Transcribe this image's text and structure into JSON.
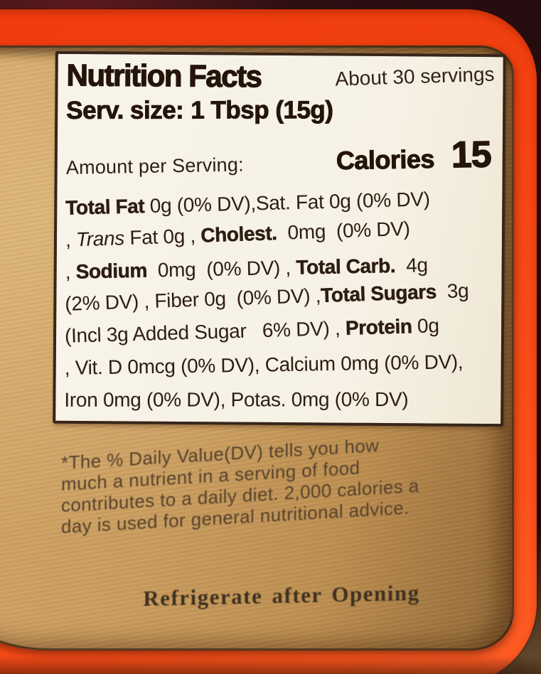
{
  "colors": {
    "bg-dark": "#2a0e11",
    "bg-dark-top": "#5a1a1d",
    "orange": "#ef3c10",
    "orange-bright": "#ff5d24",
    "label-tan": "#c99c5e",
    "label-tan-shadow": "#8f6636",
    "panel-white": "#f8f4ea",
    "ink-dark": "#241409",
    "ink-body": "#2e1d13",
    "ink-footnote": "#55412c",
    "ink-storage": "#3e3220"
  },
  "nutrition": {
    "title": "Nutrition Facts",
    "servings_note": "About 30 servings",
    "serving_size_label": "Serv. size:",
    "serving_size_value": "1 Tbsp (15g)",
    "amount_label": "Amount per Serving:",
    "calories_label": "Calories",
    "calories_value": "15",
    "lines": [
      {
        "segments": [
          {
            "t": "Total Fat",
            "s": "b"
          },
          {
            "t": " 0g (0% DV),",
            "s": "r"
          },
          {
            "t": "Sat. Fat 0g (0% DV)",
            "s": "r"
          }
        ]
      },
      {
        "segments": [
          {
            "t": ", ",
            "s": "r"
          },
          {
            "t": "Trans",
            "s": "i"
          },
          {
            "t": " Fat 0g , ",
            "s": "r"
          },
          {
            "t": "Cholest.",
            "s": "b"
          },
          {
            "t": "  0mg  (0% DV)",
            "s": "r"
          }
        ]
      },
      {
        "segments": [
          {
            "t": ", ",
            "s": "r"
          },
          {
            "t": "Sodium",
            "s": "b"
          },
          {
            "t": "  0mg  (0% DV) , ",
            "s": "r"
          },
          {
            "t": "Total Carb.",
            "s": "b"
          },
          {
            "t": "  4g",
            "s": "r"
          }
        ]
      },
      {
        "segments": [
          {
            "t": "(2% DV) , Fiber 0g  (0% DV) ,",
            "s": "r"
          },
          {
            "t": "Total Sugars",
            "s": "b"
          },
          {
            "t": "  3g",
            "s": "r"
          }
        ]
      },
      {
        "segments": [
          {
            "t": "(Incl 3g Added Sugar   6% DV) , ",
            "s": "r"
          },
          {
            "t": "Protein",
            "s": "b"
          },
          {
            "t": " 0g",
            "s": "r"
          }
        ]
      },
      {
        "segments": [
          {
            "t": ", Vit. D 0mcg (0% DV), Calcium 0mg (0% DV),",
            "s": "r"
          }
        ]
      },
      {
        "segments": [
          {
            "t": "Iron 0mg (0% DV), Potas. 0mg (0% DV)",
            "s": "r"
          }
        ]
      }
    ]
  },
  "footnote": {
    "lines": [
      "*The % Daily Value(DV) tells you how",
      "much a nutrient in a serving of food",
      "contributes to a daily diet. 2,000 calories a",
      "day is used for general nutritional advice."
    ]
  },
  "storage_note": "Refrigerate after Opening"
}
